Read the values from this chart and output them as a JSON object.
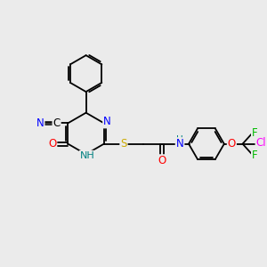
{
  "background_color": "#ebebeb",
  "bond_color": "#000000",
  "atom_colors": {
    "N": "#0000ff",
    "O": "#ff0000",
    "S": "#ccaa00",
    "C_label": "#000000",
    "F": "#00bb00",
    "Cl": "#ff00ff",
    "NH": "#008080"
  },
  "figsize": [
    3.0,
    3.0
  ],
  "dpi": 100,
  "lw": 1.3,
  "fs": 8.5
}
